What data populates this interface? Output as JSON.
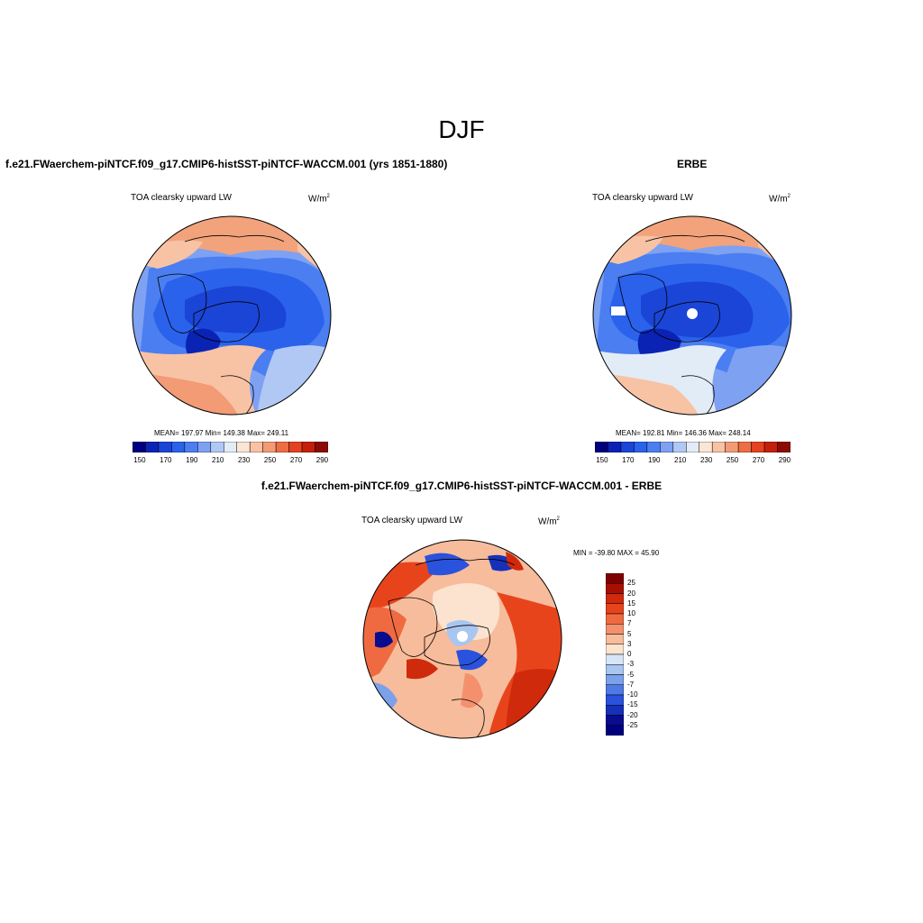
{
  "season": "DJF",
  "palette": [
    "#00007f",
    "#0a23b4",
    "#1a45d7",
    "#2a62ec",
    "#4b7ef0",
    "#7ea1f2",
    "#b1c8f4",
    "#e2ecf6",
    "#fbe5d4",
    "#f7c3a4",
    "#f29b75",
    "#ee6d45",
    "#e44220",
    "#c41f0c",
    "#8c0a04"
  ],
  "panels": {
    "model": {
      "title": "f.e21.FWaerchem-piNTCF.f09_g17.CMIP6-histSST-piNTCF-WACCM.001 (yrs 1851-1880)",
      "variable": "TOA clearsky upward LW",
      "units": "W/m",
      "units_exp": "2",
      "stats": "MEAN= 197.97  Min= 149.38  Max= 249.11",
      "colorbar_labels": [
        "150",
        "170",
        "190",
        "210",
        "230",
        "250",
        "270",
        "290"
      ]
    },
    "obs": {
      "title": "ERBE",
      "variable": "TOA clearsky upward LW",
      "units": "W/m",
      "units_exp": "2",
      "stats": "MEAN= 192.81  Min= 146.36  Max= 248.14",
      "colorbar_labels": [
        "150",
        "170",
        "190",
        "210",
        "230",
        "250",
        "270",
        "290"
      ]
    },
    "diff": {
      "title": "f.e21.FWaerchem-piNTCF.f09_g17.CMIP6-histSST-piNTCF-WACCM.001 - ERBE",
      "variable": "TOA clearsky upward LW",
      "units": "W/m",
      "units_exp": "2",
      "stats": "MIN = -39.80 MAX =  45.90",
      "colorbar_labels": [
        "25",
        "20",
        "15",
        "10",
        "7",
        "5",
        "3",
        "0",
        "-3",
        "-5",
        "-7",
        "-10",
        "-15",
        "-20",
        "-25"
      ],
      "colorbar_colors": [
        "#7f0000",
        "#a80f03",
        "#cf2a0c",
        "#e8441c",
        "#f06a41",
        "#f4916c",
        "#f7bc9b",
        "#fbe3cf",
        "#d6e6f7",
        "#a9c6f1",
        "#7ba1eb",
        "#4f7ae6",
        "#2a52dc",
        "#1630b9",
        "#080c8e",
        "#00007f"
      ]
    }
  }
}
